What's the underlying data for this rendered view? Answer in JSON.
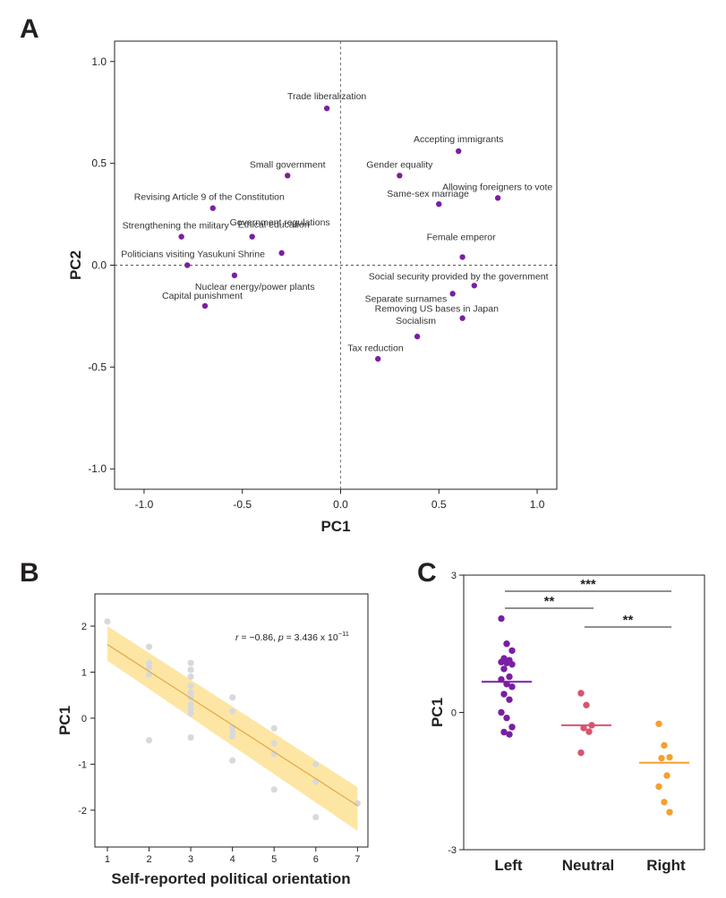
{
  "panels": {
    "a": "A",
    "b": "B",
    "c": "C"
  },
  "chart_data": [
    {
      "type": "scatter",
      "xlabel": "PC1",
      "ylabel": "PC2",
      "xlim": [
        -1.15,
        1.1
      ],
      "ylim": [
        -1.1,
        1.1
      ],
      "xticks": [
        -1.0,
        -0.5,
        0.0,
        0.5,
        1.0
      ],
      "xtick_labels": [
        "-1.0",
        "-0.5",
        "0.0",
        "0.5",
        "1.0"
      ],
      "yticks": [
        1.0,
        0.5,
        0.0,
        -0.5,
        -1.0
      ],
      "ytick_labels": [
        "1.0",
        "0.5",
        "0.0",
        "-0.5",
        "-1.0"
      ],
      "reference_lines": "dashed lines at x = 0 and y = 0",
      "point_color": "#7a1fa2",
      "points": [
        {
          "label": "Trade liberalization",
          "x": -0.07,
          "y": 0.77
        },
        {
          "label": "Accepting immigrants",
          "x": 0.6,
          "y": 0.56
        },
        {
          "label": "Small government",
          "x": -0.27,
          "y": 0.44
        },
        {
          "label": "Gender equality",
          "x": 0.3,
          "y": 0.44
        },
        {
          "label": "Revising Article 9 of the Constitution",
          "x": -0.65,
          "y": 0.28
        },
        {
          "label": "Allowing foreigners to vote",
          "x": 0.8,
          "y": 0.33
        },
        {
          "label": "Same-sex marriage",
          "x": 0.5,
          "y": 0.3
        },
        {
          "label": "Strengthening the military",
          "x": -0.81,
          "y": 0.14
        },
        {
          "label": "Ethical education",
          "x": -0.45,
          "y": 0.14
        },
        {
          "label": "Government regulations",
          "x": -0.3,
          "y": 0.06
        },
        {
          "label": "Politicians visiting Yasukuni Shrine",
          "x": -0.78,
          "y": 0.0
        },
        {
          "label": "Female emperor",
          "x": 0.62,
          "y": 0.04
        },
        {
          "label": "Nuclear energy/power plants",
          "x": -0.54,
          "y": -0.05
        },
        {
          "label": "Social security provided by the government",
          "x": 0.68,
          "y": -0.1
        },
        {
          "label": "Separate surnames",
          "x": 0.57,
          "y": -0.14
        },
        {
          "label": "Capital punishment",
          "x": -0.69,
          "y": -0.2
        },
        {
          "label": "Removing US bases in Japan",
          "x": 0.62,
          "y": -0.26
        },
        {
          "label": "Socialism",
          "x": 0.39,
          "y": -0.35
        },
        {
          "label": "Tax reduction",
          "x": 0.19,
          "y": -0.46
        }
      ]
    },
    {
      "type": "scatter",
      "xlabel": "Self-reported political orientation",
      "ylabel": "PC1",
      "xlim": [
        0.7,
        7.25
      ],
      "ylim": [
        -2.8,
        2.7
      ],
      "xticks": [
        1,
        2,
        3,
        4,
        5,
        6,
        7
      ],
      "xtick_labels": [
        "1",
        "2",
        "3",
        "4",
        "5",
        "6",
        "7"
      ],
      "yticks": [
        2,
        1,
        0,
        -1,
        -2
      ],
      "ytick_labels": [
        "2",
        "1",
        "0",
        "-1",
        "-2"
      ],
      "annotation": {
        "r_text": "r",
        "r_value": " = −0.86, ",
        "p_text": "p",
        "p_value": " = 3.436 x 10",
        "exponent": "−11"
      },
      "regression": {
        "x": [
          1,
          7
        ],
        "y": [
          1.6,
          -1.9
        ],
        "ci_upper": [
          2.0,
          -1.5
        ],
        "ci_lower": [
          1.25,
          -2.45
        ]
      },
      "point_color": "#d9d9d9",
      "line_color": "#e6a84a",
      "band_color": "#fde39a",
      "points": [
        {
          "x": 1,
          "y": 2.1
        },
        {
          "x": 2,
          "y": 1.55
        },
        {
          "x": 2,
          "y": 1.2
        },
        {
          "x": 2,
          "y": 1.1
        },
        {
          "x": 2,
          "y": 0.95
        },
        {
          "x": 2,
          "y": -0.48
        },
        {
          "x": 3,
          "y": 1.2
        },
        {
          "x": 3,
          "y": 1.05
        },
        {
          "x": 3,
          "y": 0.9
        },
        {
          "x": 3,
          "y": 0.7
        },
        {
          "x": 3,
          "y": 0.55
        },
        {
          "x": 3,
          "y": 0.45
        },
        {
          "x": 3,
          "y": 0.3
        },
        {
          "x": 3,
          "y": 0.2
        },
        {
          "x": 3,
          "y": 0.1
        },
        {
          "x": 3,
          "y": -0.42
        },
        {
          "x": 4,
          "y": 0.45
        },
        {
          "x": 4,
          "y": 0.15
        },
        {
          "x": 4,
          "y": -0.2
        },
        {
          "x": 4,
          "y": -0.3
        },
        {
          "x": 4,
          "y": -0.4
        },
        {
          "x": 4,
          "y": -0.92
        },
        {
          "x": 5,
          "y": -0.22
        },
        {
          "x": 5,
          "y": -0.55
        },
        {
          "x": 5,
          "y": -0.78
        },
        {
          "x": 5,
          "y": -1.55
        },
        {
          "x": 6,
          "y": -1.0
        },
        {
          "x": 6,
          "y": -1.38
        },
        {
          "x": 6,
          "y": -2.15
        },
        {
          "x": 7,
          "y": -1.85
        }
      ]
    },
    {
      "type": "scatter",
      "ylabel": "PC1",
      "ylim": [
        -3,
        3
      ],
      "yticks": [
        3,
        0,
        -3
      ],
      "ytick_labels": [
        "3",
        "0",
        "-3"
      ],
      "categories": [
        "Left",
        "Neutral",
        "Right"
      ],
      "series": [
        {
          "color": "#7a1fa2",
          "mean": 0.67,
          "values": [
            2.05,
            1.5,
            1.35,
            1.18,
            1.14,
            1.1,
            1.08,
            1.05,
            0.95,
            0.78,
            0.72,
            0.62,
            0.56,
            0.4,
            0.28,
            0.0,
            -0.12,
            -0.32,
            -0.43,
            -0.48
          ]
        },
        {
          "color": "#d9546e",
          "mean": -0.28,
          "values": [
            0.42,
            0.16,
            -0.28,
            -0.34,
            -0.42,
            -0.88
          ]
        },
        {
          "color": "#f5a030",
          "mean": -1.1,
          "values": [
            -0.25,
            -0.72,
            -0.98,
            -1.0,
            -1.38,
            -1.62,
            -1.96,
            -2.18
          ]
        }
      ],
      "significance": [
        {
          "between": [
            "Left",
            "Right"
          ],
          "label": "***"
        },
        {
          "between": [
            "Left",
            "Neutral"
          ],
          "label": "**"
        },
        {
          "between": [
            "Neutral",
            "Right"
          ],
          "label": "**"
        }
      ]
    }
  ]
}
